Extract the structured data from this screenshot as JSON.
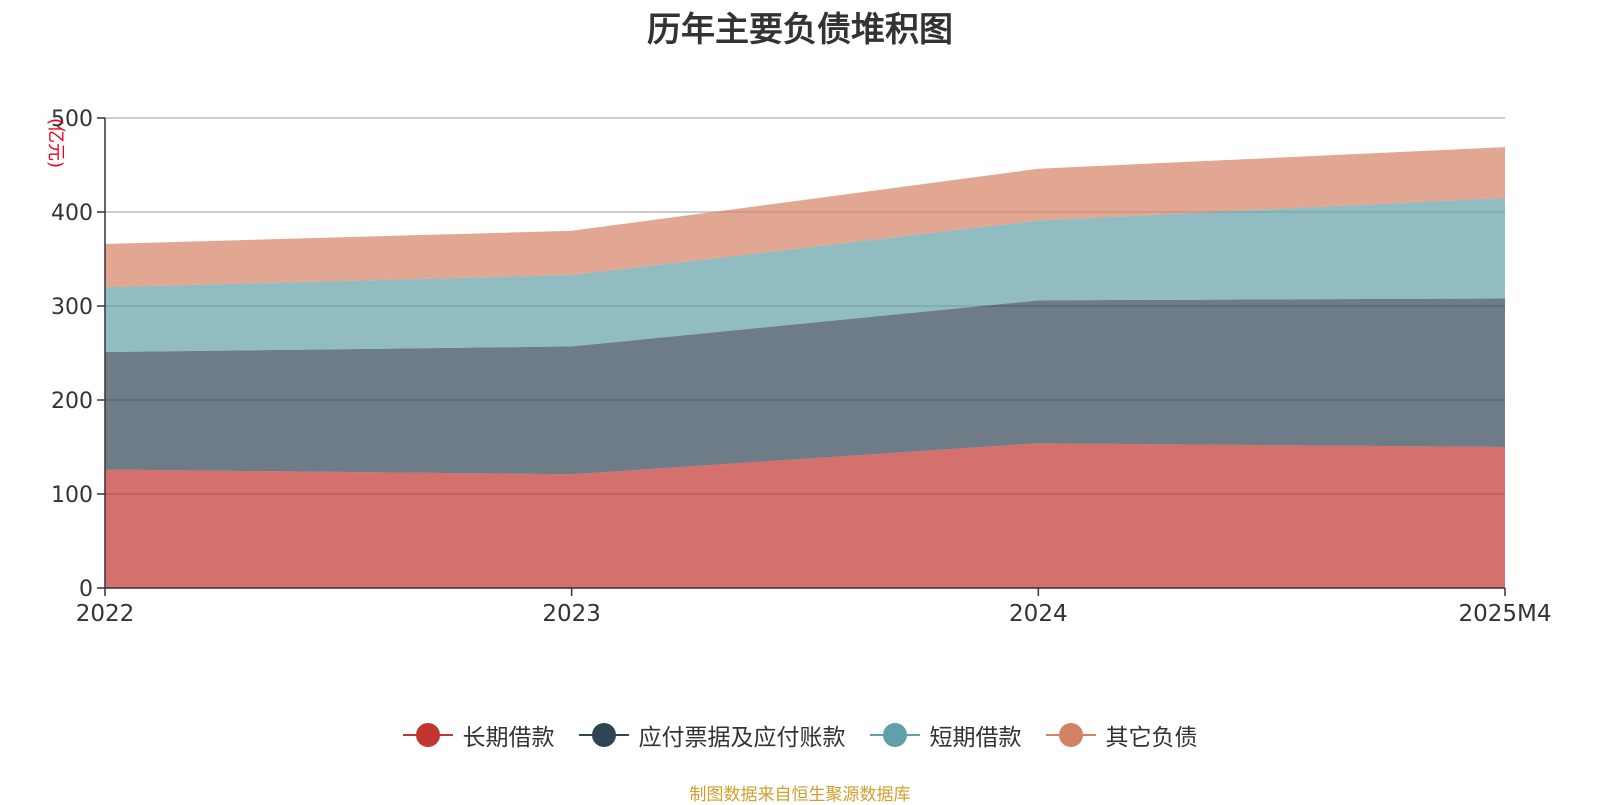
{
  "chart_data": {
    "type": "area",
    "stacked": true,
    "title": "历年主要负债堆积图",
    "ylabel": "(亿元)",
    "xlabel": "",
    "x": [
      "2022",
      "2023",
      "2024",
      "2025M4"
    ],
    "ylim": [
      0,
      500
    ],
    "yticks": [
      0,
      100,
      200,
      300,
      400,
      500
    ],
    "grid": true,
    "legend_position": "bottom",
    "series": [
      {
        "name": "长期借款",
        "values": [
          126,
          121,
          154,
          150
        ],
        "color": "#c23531"
      },
      {
        "name": "应付票据及应付账款",
        "values": [
          125,
          136,
          152,
          158
        ],
        "color": "#2f4554"
      },
      {
        "name": "短期借款",
        "values": [
          69,
          76,
          85,
          107
        ],
        "color": "#61a0a8"
      },
      {
        "name": "其它负债",
        "values": [
          46,
          47,
          55,
          54
        ],
        "color": "#d48265"
      }
    ]
  },
  "source_note": "制图数据来自恒生聚源数据库"
}
